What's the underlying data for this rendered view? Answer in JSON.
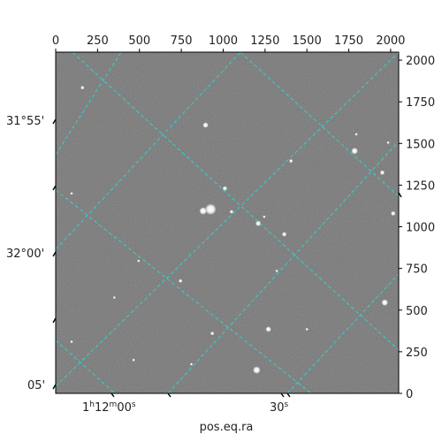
{
  "figure": {
    "xlabel": "pos.eq.ra",
    "pixel_x_ticks": [
      "0",
      "250",
      "500",
      "750",
      "1000",
      "1250",
      "1500",
      "1750",
      "2000"
    ],
    "pixel_y_ticks": [
      "0",
      "250",
      "500",
      "750",
      "1000",
      "1250",
      "1500",
      "1750",
      "2000"
    ],
    "ra_ticks": [
      {
        "h": "1",
        "m": "12",
        "s": "00"
      },
      {
        "s": "30"
      }
    ],
    "dec_ticks": [
      "31°55'",
      "32°00'",
      "05'"
    ],
    "colors": {
      "grid": "#2fd3d3",
      "frame": "#000000",
      "sky": "#707070"
    }
  },
  "image_pixel_range": {
    "x": [
      0,
      2048
    ],
    "y": [
      0,
      2048
    ]
  },
  "stars": [
    {
      "x": 895,
      "y": 1610,
      "r": 3
    },
    {
      "x": 160,
      "y": 1835,
      "r": 2
    },
    {
      "x": 925,
      "y": 1105,
      "r": 6
    },
    {
      "x": 880,
      "y": 1095,
      "r": 4
    },
    {
      "x": 1050,
      "y": 1090,
      "r": 2
    },
    {
      "x": 1010,
      "y": 1230,
      "r": 2.5
    },
    {
      "x": 1210,
      "y": 1020,
      "r": 3
    },
    {
      "x": 1245,
      "y": 1060,
      "r": 1.5
    },
    {
      "x": 1365,
      "y": 955,
      "r": 2.5
    },
    {
      "x": 1405,
      "y": 1395,
      "r": 2
    },
    {
      "x": 1785,
      "y": 1455,
      "r": 3.5
    },
    {
      "x": 1950,
      "y": 1325,
      "r": 2.5
    },
    {
      "x": 2015,
      "y": 1080,
      "r": 2.5
    },
    {
      "x": 1985,
      "y": 1505,
      "r": 1.5
    },
    {
      "x": 1795,
      "y": 1555,
      "r": 1.5
    },
    {
      "x": 495,
      "y": 795,
      "r": 1.5
    },
    {
      "x": 745,
      "y": 675,
      "r": 2
    },
    {
      "x": 350,
      "y": 575,
      "r": 1.5
    },
    {
      "x": 95,
      "y": 310,
      "r": 1.5
    },
    {
      "x": 935,
      "y": 360,
      "r": 2
    },
    {
      "x": 1270,
      "y": 385,
      "r": 3
    },
    {
      "x": 1500,
      "y": 385,
      "r": 1.5
    },
    {
      "x": 1200,
      "y": 140,
      "r": 4
    },
    {
      "x": 1965,
      "y": 545,
      "r": 3.5
    },
    {
      "x": 465,
      "y": 200,
      "r": 1.5
    },
    {
      "x": 810,
      "y": 175,
      "r": 1.5
    },
    {
      "x": 95,
      "y": 1200,
      "r": 1.5
    },
    {
      "x": 1320,
      "y": 735,
      "r": 1.5
    }
  ]
}
